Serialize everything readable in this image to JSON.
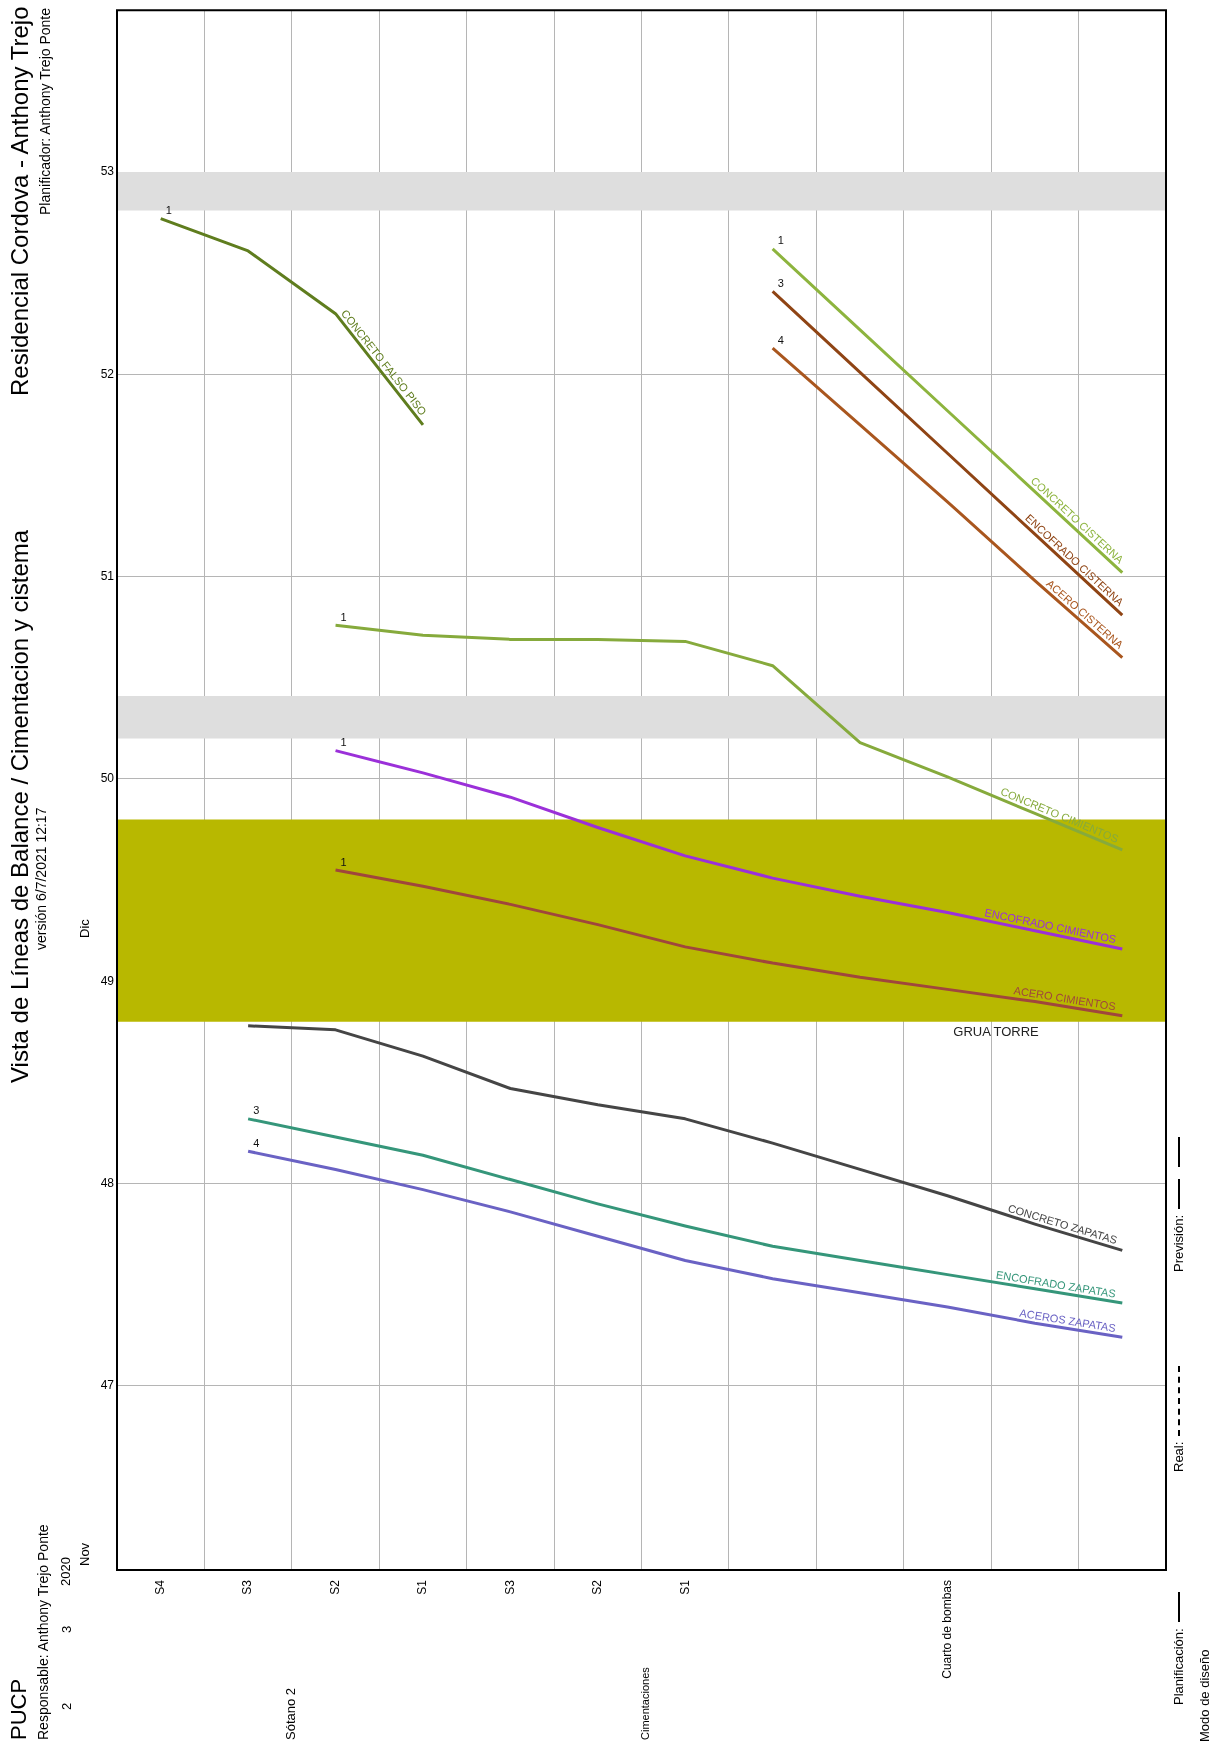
{
  "chart_data": {
    "type": "line",
    "title": "Vista de Líneas de Balance / Cimentacion y cistema",
    "subtitle": "versión 6/7/2021 12:17",
    "categories": [
      "S4",
      "S3",
      "S2",
      "S1",
      "S3",
      "S2",
      "S1",
      null,
      null,
      "Cuarto de bombas",
      null,
      null
    ],
    "ylim": [
      46.09,
      53.8
    ],
    "yticks": [
      47,
      48,
      49,
      50,
      51,
      52,
      53
    ],
    "grid": true,
    "legend": false,
    "marker": "none",
    "line_style": "solid",
    "series": [
      {
        "name": "ACEROS ZAPATAS",
        "color": "#6a62c4",
        "values": [
          null,
          48.16,
          48.07,
          47.97,
          47.86,
          47.74,
          47.62,
          47.53,
          47.46,
          47.39,
          47.31,
          47.24
        ]
      },
      {
        "name": "ENCOFRADO ZAPATAS",
        "color": "#35967a",
        "values": [
          null,
          48.32,
          48.23,
          48.14,
          48.02,
          47.9,
          47.79,
          47.69,
          47.62,
          47.55,
          47.48,
          47.41
        ]
      },
      {
        "name": "CONCRETO ZAPATAS",
        "color": "#454545",
        "values": [
          null,
          48.78,
          48.76,
          48.63,
          48.47,
          48.39,
          48.32,
          48.2,
          48.07,
          47.94,
          47.8,
          47.67
        ]
      },
      {
        "name": "ACERO CIMIENTOS",
        "color": "#a0463c",
        "values": [
          null,
          null,
          49.55,
          49.47,
          49.38,
          49.28,
          49.17,
          49.09,
          49.02,
          48.96,
          48.9,
          48.83
        ]
      },
      {
        "name": "ENCOFRADO CIMIENTOS",
        "color": "#9b30d9",
        "values": [
          null,
          null,
          50.14,
          50.03,
          49.91,
          49.76,
          49.62,
          49.51,
          49.42,
          49.34,
          49.25,
          49.16
        ]
      },
      {
        "name": "CONCRETO CIMIENTOS",
        "color": "#86aa3c",
        "values": [
          null,
          null,
          50.76,
          50.71,
          50.69,
          50.69,
          50.68,
          50.56,
          50.18,
          50.01,
          49.83,
          49.65
        ]
      },
      {
        "name": "CONCRETO FALSO PISO",
        "color": "#5f7d1e",
        "values": [
          52.77,
          52.61,
          52.3,
          51.75,
          null,
          null,
          null,
          null,
          null,
          null,
          null,
          null
        ]
      },
      {
        "name": "ACERO CISTERNA",
        "color": "#a9561e",
        "values": [
          null,
          null,
          null,
          null,
          null,
          null,
          null,
          52.13,
          51.75,
          51.37,
          50.98,
          50.6
        ]
      },
      {
        "name": "ENCOFRADO CISTERNA",
        "color": "#8f4414",
        "values": [
          null,
          null,
          null,
          null,
          null,
          null,
          null,
          52.41,
          52.01,
          51.61,
          51.21,
          50.81
        ]
      },
      {
        "name": "CONCRETO CISTERNA",
        "color": "#8db43e",
        "values": [
          null,
          null,
          null,
          null,
          null,
          null,
          null,
          52.62,
          52.22,
          51.82,
          51.42,
          51.02
        ]
      }
    ],
    "bands": [
      {
        "axis": "y",
        "from": 52.81,
        "to": 53.0,
        "color": "#dedede"
      },
      {
        "axis": "y",
        "from": 50.2,
        "to": 50.41,
        "color": "#dedede"
      },
      {
        "axis": "y",
        "from": 48.8,
        "to": 49.8,
        "color": "#b8b800",
        "label": "GRUA TORRE"
      }
    ],
    "annotations": [
      "PUCP",
      "Responsable: Anthony Trejo Ponte",
      "Residencial Cordova - Anthony Trejo",
      "Planificador: Anthony Trejo Ponte",
      "2020",
      "2",
      "3",
      "Planificación:",
      "Real:",
      "Previsión:",
      "Modo de diseño",
      "Nov",
      "Dic",
      "Sótano 2",
      "Cimentaciones",
      {
        "text": "4",
        "y": 48.16
      },
      {
        "text": "3",
        "y": 48.32
      },
      {
        "text": "1",
        "y": 49.55
      },
      {
        "text": "1",
        "y": 50.14
      },
      {
        "text": "1",
        "y": 50.76
      },
      {
        "text": "1",
        "y": 52.77
      },
      {
        "text": "4",
        "y": 52.13
      },
      {
        "text": "3",
        "y": 52.41
      },
      {
        "text": "1",
        "y": 52.62
      }
    ]
  }
}
